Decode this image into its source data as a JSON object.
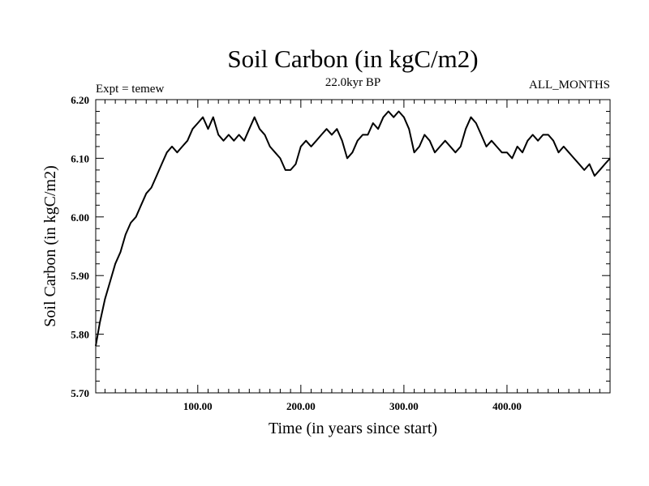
{
  "chart_data": {
    "type": "line",
    "title": "Soil Carbon (in kgC/m2)",
    "left_label": "Expt = temew",
    "center_label": "22.0kyr BP",
    "right_label": "ALL_MONTHS",
    "xlabel": "Time (in years since start)",
    "ylabel": "Soil Carbon (in kgC/m2)",
    "xlim": [
      1,
      500
    ],
    "ylim": [
      5.7,
      6.2
    ],
    "x_ticks": [
      100,
      200,
      300,
      400
    ],
    "x_tick_labels": [
      "100.00",
      "200.00",
      "300.00",
      "400.00"
    ],
    "y_ticks": [
      5.7,
      5.8,
      5.9,
      6.0,
      6.1,
      6.2
    ],
    "y_tick_labels": [
      "5.70",
      "5.80",
      "5.90",
      "6.00",
      "6.10",
      "6.20"
    ],
    "grid": false,
    "series": [
      {
        "name": "Soil Carbon",
        "color": "#000000",
        "x": [
          1,
          5,
          10,
          15,
          20,
          25,
          30,
          35,
          40,
          45,
          50,
          55,
          60,
          65,
          70,
          75,
          80,
          85,
          90,
          95,
          100,
          105,
          110,
          115,
          120,
          125,
          130,
          135,
          140,
          145,
          150,
          155,
          160,
          165,
          170,
          175,
          180,
          185,
          190,
          195,
          200,
          205,
          210,
          215,
          220,
          225,
          230,
          235,
          240,
          245,
          250,
          255,
          260,
          265,
          270,
          275,
          280,
          285,
          290,
          295,
          300,
          305,
          310,
          315,
          320,
          325,
          330,
          335,
          340,
          345,
          350,
          355,
          360,
          365,
          370,
          375,
          380,
          385,
          390,
          395,
          400,
          405,
          410,
          415,
          420,
          425,
          430,
          435,
          440,
          445,
          450,
          455,
          460,
          465,
          470,
          475,
          480,
          485,
          490,
          495,
          500
        ],
        "values": [
          5.78,
          5.82,
          5.86,
          5.89,
          5.92,
          5.94,
          5.97,
          5.99,
          6.0,
          6.02,
          6.04,
          6.05,
          6.07,
          6.09,
          6.11,
          6.12,
          6.11,
          6.12,
          6.13,
          6.15,
          6.16,
          6.17,
          6.15,
          6.17,
          6.14,
          6.13,
          6.14,
          6.13,
          6.14,
          6.13,
          6.15,
          6.17,
          6.15,
          6.14,
          6.12,
          6.11,
          6.1,
          6.08,
          6.08,
          6.09,
          6.12,
          6.13,
          6.12,
          6.13,
          6.14,
          6.15,
          6.14,
          6.15,
          6.13,
          6.1,
          6.11,
          6.13,
          6.14,
          6.14,
          6.16,
          6.15,
          6.17,
          6.18,
          6.17,
          6.18,
          6.17,
          6.15,
          6.11,
          6.12,
          6.14,
          6.13,
          6.11,
          6.12,
          6.13,
          6.12,
          6.11,
          6.12,
          6.15,
          6.17,
          6.16,
          6.14,
          6.12,
          6.13,
          6.12,
          6.11,
          6.11,
          6.1,
          6.12,
          6.11,
          6.13,
          6.14,
          6.13,
          6.14,
          6.14,
          6.13,
          6.11,
          6.12,
          6.11,
          6.1,
          6.09,
          6.08,
          6.09,
          6.07,
          6.08,
          6.09,
          6.1
        ]
      }
    ]
  }
}
